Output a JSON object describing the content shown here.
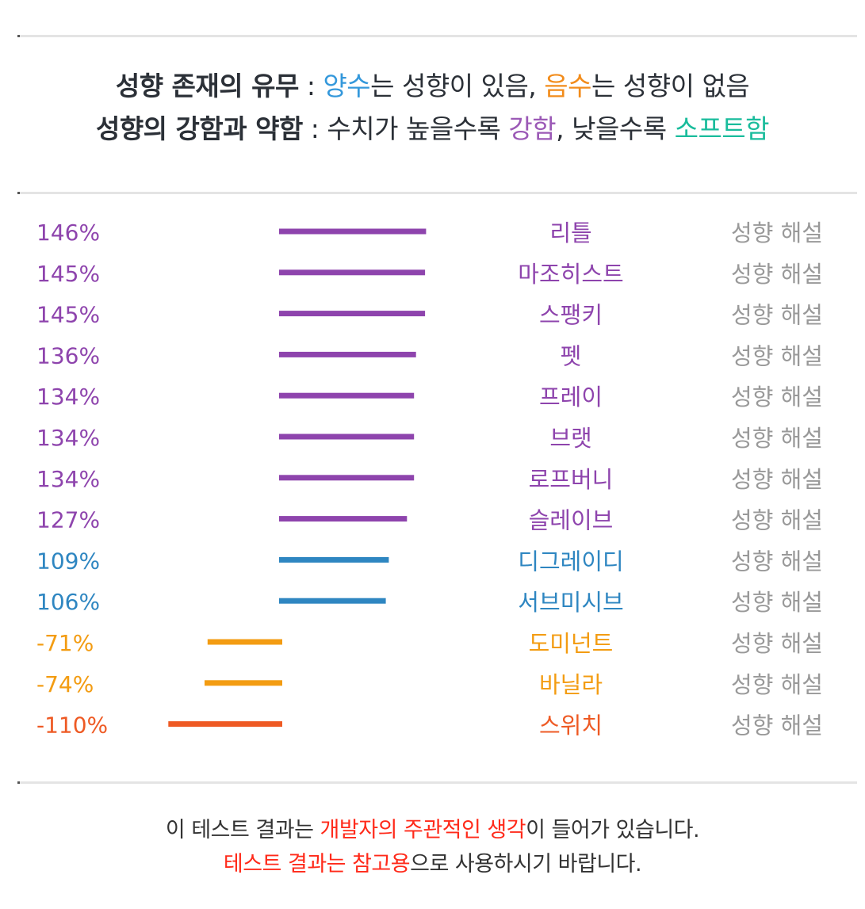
{
  "header": {
    "line1": {
      "label": "성향 존재의 유무",
      "sep": " : ",
      "positive": "양수",
      "mid": "는 성향이 있음, ",
      "negative": "음수",
      "end": "는 성향이 없음"
    },
    "line2": {
      "label": "성향의 강함과 약함",
      "sep": " : 수치가 높을수록 ",
      "strong": "강함",
      "mid": ", 낮을수록 ",
      "soft": "소프트함"
    }
  },
  "colors": {
    "strong": "#8e44ad",
    "medium": "#2e86c1",
    "weak_negative": "#f39c12",
    "strong_negative": "#ee5a24",
    "link": "#999999",
    "divider": "#e4e4e4"
  },
  "chart_data": {
    "type": "bar",
    "orientation": "horizontal",
    "value_unit": "%",
    "categories": [
      "리틀",
      "마조히스트",
      "스팽키",
      "펫",
      "프레이",
      "브랫",
      "로프버니",
      "슬레이브",
      "디그레이디",
      "서브미시브",
      "도미넌트",
      "바닐라",
      "스위치"
    ],
    "values": [
      146,
      145,
      145,
      136,
      134,
      134,
      134,
      127,
      109,
      106,
      -71,
      -74,
      -110
    ],
    "value_labels": [
      "146%",
      "145%",
      "145%",
      "136%",
      "134%",
      "134%",
      "134%",
      "127%",
      "109%",
      "106%",
      "-71%",
      "-74%",
      "-110%"
    ],
    "bar_colors": [
      "#8e44ad",
      "#8e44ad",
      "#8e44ad",
      "#8e44ad",
      "#8e44ad",
      "#8e44ad",
      "#8e44ad",
      "#8e44ad",
      "#2e86c1",
      "#2e86c1",
      "#f39c12",
      "#f39c12",
      "#ee5a24"
    ],
    "link_label": "성향 해설",
    "xlim": [
      -110,
      146
    ]
  },
  "footer": {
    "line1": {
      "a": "이 테스트 결과는 ",
      "highlight": "개발자의 주관적인 생각",
      "b": "이 들어가 있습니다."
    },
    "line2": {
      "highlight": "테스트 결과는 참고용",
      "b": "으로 사용하시기 바랍니다."
    }
  }
}
